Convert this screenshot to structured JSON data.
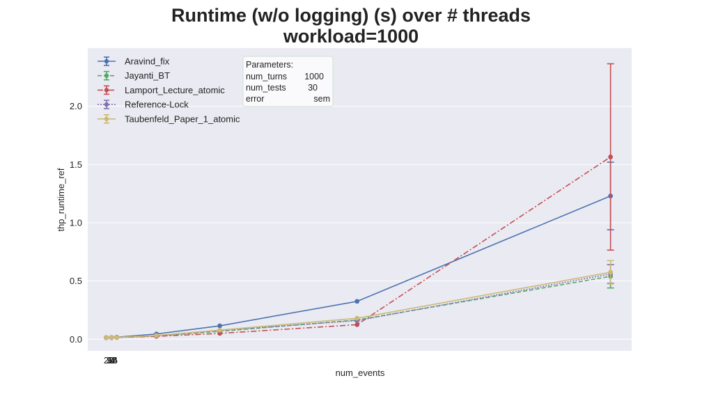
{
  "chart_data": {
    "type": "line",
    "title_line1": "Runtime (w/o logging) (s) over # threads",
    "title_line2": "workload=1000",
    "xlabel": "num_events",
    "ylabel": "thp_runtime_ref",
    "x_tick_labels": [
      "2",
      "4",
      "8",
      "16",
      "32",
      "64"
    ],
    "xlim": [
      -6,
      200
    ],
    "ylim": [
      -0.1,
      2.5
    ],
    "y_ticks": [
      0.0,
      0.5,
      1.0,
      1.5,
      2.0
    ],
    "y_tick_labels": [
      "0.0",
      "0.5",
      "1.0",
      "1.5",
      "2.0"
    ],
    "grid": true,
    "legend_position": "top-left",
    "x": [
      1,
      3,
      5,
      20,
      44,
      96,
      192
    ],
    "series": [
      {
        "name": "Aravind_fix",
        "color": "#4c72b0",
        "dash": "solid",
        "values": [
          0.015,
          0.016,
          0.018,
          0.045,
          0.115,
          0.325,
          1.23
        ],
        "err": [
          0.002,
          0.002,
          0.002,
          0.003,
          0.005,
          0.01,
          0.29
        ]
      },
      {
        "name": "Jayanti_BT",
        "color": "#55a868",
        "dash": "dashed",
        "values": [
          0.013,
          0.014,
          0.015,
          0.028,
          0.068,
          0.165,
          0.54
        ],
        "err": [
          0.001,
          0.001,
          0.001,
          0.002,
          0.003,
          0.006,
          0.1
        ]
      },
      {
        "name": "Lamport_Lecture_atomic",
        "color": "#c44e52",
        "dash": "dashdot",
        "values": [
          0.013,
          0.014,
          0.015,
          0.025,
          0.05,
          0.125,
          1.565
        ],
        "err": [
          0.001,
          0.001,
          0.001,
          0.002,
          0.003,
          0.006,
          0.8
        ]
      },
      {
        "name": "Reference-Lock",
        "color": "#8172b2",
        "dash": "dotted",
        "values": [
          0.013,
          0.014,
          0.015,
          0.03,
          0.075,
          0.16,
          0.56
        ],
        "err": [
          0.001,
          0.001,
          0.001,
          0.002,
          0.003,
          0.005,
          0.08
        ]
      },
      {
        "name": "Taubenfeld_Paper_1_atomic",
        "color": "#ccb974",
        "dash": "solid",
        "values": [
          0.014,
          0.015,
          0.016,
          0.032,
          0.078,
          0.18,
          0.575
        ],
        "err": [
          0.001,
          0.001,
          0.001,
          0.002,
          0.003,
          0.006,
          0.1
        ]
      }
    ],
    "annotation": {
      "heading": "Parameters:",
      "rows": [
        {
          "key": "num_turns",
          "value": "1000"
        },
        {
          "key": "num_tests",
          "value": "30"
        },
        {
          "key": "error",
          "value": "sem"
        }
      ]
    }
  }
}
